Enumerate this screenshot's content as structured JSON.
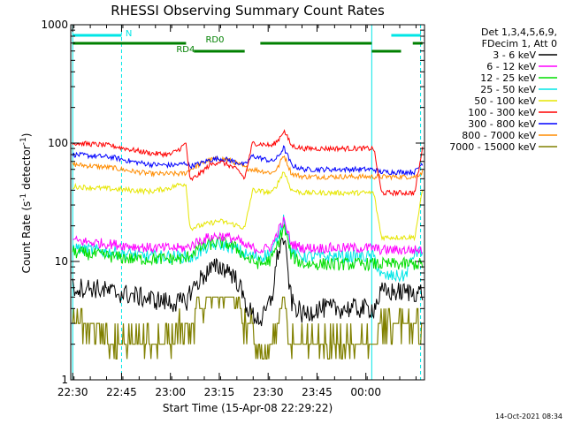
{
  "chart_data": {
    "type": "line",
    "title": "RHESSI Observing Summary Count Rates",
    "xlabel": "Start Time (15-Apr-08 22:29:22)",
    "ylabel_main": "Count Rate (s",
    "ylabel_sup1": "-1",
    "ylabel_mid": " detector",
    "ylabel_sup2": "-1",
    "ylabel_end": ")",
    "yscale": "log",
    "xlim": [
      22.49,
      24.3
    ],
    "ylim": [
      1,
      1000
    ],
    "x_ticks": [
      {
        "value": 22.5,
        "label": "22:30"
      },
      {
        "value": 22.75,
        "label": "22:45"
      },
      {
        "value": 23.0,
        "label": "23:00"
      },
      {
        "value": 23.25,
        "label": "23:15"
      },
      {
        "value": 23.5,
        "label": "23:30"
      },
      {
        "value": 23.75,
        "label": "23:45"
      },
      {
        "value": 24.0,
        "label": "00:00"
      }
    ],
    "y_ticks": [
      {
        "value": 1,
        "label": "1"
      },
      {
        "value": 10,
        "label": "10"
      },
      {
        "value": 100,
        "label": "100"
      },
      {
        "value": 1000,
        "label": "1000"
      }
    ],
    "legend_header": [
      "Det 1,3,4,5,6,9,",
      "FDecim 1, Att 0"
    ],
    "legend_position": "right",
    "timestamp": "14-Oct-2021 08:34",
    "markers": [
      {
        "label": "N",
        "color": "#00e6e6",
        "segments": [
          [
            22.5,
            22.75
          ],
          [
            24.13,
            24.28
          ]
        ],
        "level": 0,
        "text_at": 22.77
      },
      {
        "label": "RD0",
        "color": "#008000",
        "segments": [
          [
            22.5,
            23.08
          ],
          [
            23.46,
            24.03
          ],
          [
            24.24,
            24.29
          ]
        ],
        "level": 1,
        "text_at": 23.18
      },
      {
        "label": "RD4",
        "color": "#008000",
        "segments": [
          [
            23.12,
            23.38
          ],
          [
            24.03,
            24.18
          ]
        ],
        "level": 2,
        "text_at": 23.03
      }
    ],
    "vlines": [
      22.5,
      22.75,
      24.03,
      24.28
    ],
    "vline_color": "#00e6e6",
    "x": [
      22.5,
      22.6,
      22.7,
      22.8,
      22.9,
      23.0,
      23.05,
      23.08,
      23.1,
      23.15,
      23.2,
      23.25,
      23.3,
      23.35,
      23.38,
      23.42,
      23.47,
      23.52,
      23.55,
      23.58,
      23.62,
      23.68,
      23.75,
      23.85,
      23.95,
      24.0,
      24.04,
      24.08,
      24.12,
      24.15,
      24.2,
      24.25,
      24.29
    ],
    "series": [
      {
        "name": "3 - 6 keV",
        "color": "#000000",
        "noise": 0.08,
        "values": [
          6,
          6,
          5.5,
          5.2,
          4.8,
          4.5,
          4.5,
          4.5,
          5.5,
          7,
          8.5,
          9,
          8.5,
          6.5,
          4.5,
          3.5,
          3.2,
          5,
          12,
          16,
          4.5,
          3.5,
          4,
          4,
          4,
          4,
          4,
          5.5,
          5.5,
          5.5,
          5.5,
          5.5,
          5.5
        ]
      },
      {
        "name": "6 - 12 keV",
        "color": "#ff00ff",
        "noise": 0.04,
        "values": [
          15,
          14.5,
          14,
          13.5,
          13,
          13,
          13,
          13,
          13.5,
          15,
          16,
          16.5,
          16,
          15,
          13.5,
          13,
          12.5,
          13.5,
          18,
          22,
          14,
          13,
          13,
          13,
          13,
          13,
          13,
          12.5,
          12.5,
          12.5,
          12.5,
          12.5,
          12.5
        ]
      },
      {
        "name": "12 - 25 keV",
        "color": "#00dd00",
        "noise": 0.05,
        "values": [
          12,
          11.5,
          11,
          10.5,
          10.5,
          10.5,
          10.5,
          10.5,
          11.5,
          13,
          14,
          14.5,
          14,
          12.5,
          11,
          10,
          9.5,
          10.5,
          14,
          20,
          11,
          9.5,
          9.5,
          9.5,
          9.5,
          9.5,
          9.5,
          9.5,
          9.5,
          9.5,
          9.5,
          9.5,
          9.5
        ]
      },
      {
        "name": "25 - 50 keV",
        "color": "#00e6e6",
        "noise": 0.05,
        "values": [
          13,
          12.5,
          12,
          11.5,
          11,
          11,
          11,
          11,
          10.5,
          12,
          13.5,
          14,
          13.5,
          12.5,
          11.5,
          11,
          11,
          12,
          16,
          24,
          12,
          11,
          11,
          11,
          11,
          11,
          11,
          7.5,
          7.5,
          7.5,
          7.5,
          12,
          12
        ]
      },
      {
        "name": "50 - 100 keV",
        "color": "#e6e600",
        "noise": 0.02,
        "values": [
          43,
          42,
          41,
          40,
          39,
          42,
          45,
          45,
          19,
          20,
          21,
          22,
          21,
          20,
          19,
          40,
          39,
          38,
          46,
          58,
          40,
          38,
          38,
          38,
          38,
          38,
          38,
          16,
          16,
          16,
          16,
          16,
          40
        ]
      },
      {
        "name": "100 - 300 keV",
        "color": "#ff0000",
        "noise": 0.02,
        "values": [
          100,
          98,
          95,
          88,
          82,
          80,
          90,
          100,
          48,
          55,
          65,
          70,
          65,
          58,
          50,
          100,
          98,
          95,
          105,
          128,
          95,
          90,
          90,
          90,
          90,
          90,
          90,
          38,
          38,
          38,
          38,
          38,
          90
        ]
      },
      {
        "name": "300 - 800 keV",
        "color": "#0000ff",
        "noise": 0.02,
        "values": [
          80,
          78,
          76,
          70,
          66,
          65,
          66,
          68,
          64,
          67,
          72,
          74,
          72,
          68,
          65,
          78,
          74,
          70,
          76,
          92,
          65,
          60,
          60,
          60,
          60,
          60,
          60,
          57,
          57,
          57,
          57,
          57,
          68
        ]
      },
      {
        "name": "800 - 7000 keV",
        "color": "#ff8c00",
        "noise": 0.02,
        "values": [
          66,
          64,
          62,
          58,
          55,
          55,
          55,
          56,
          60,
          66,
          72,
          74,
          72,
          66,
          62,
          60,
          58,
          56,
          62,
          80,
          55,
          52,
          52,
          52,
          52,
          52,
          52,
          52,
          52,
          52,
          52,
          52,
          57
        ]
      },
      {
        "name": "7000 - 15000 keV",
        "color": "#808000",
        "noise": 0.0,
        "step": true,
        "values": [
          3,
          3,
          2,
          2,
          2,
          2,
          3,
          3,
          3,
          4,
          5,
          5,
          5,
          4,
          3,
          3,
          1.5,
          2,
          3,
          5,
          2,
          2,
          2,
          2,
          2,
          2,
          2,
          3,
          3,
          3,
          3,
          3,
          3
        ]
      }
    ]
  }
}
